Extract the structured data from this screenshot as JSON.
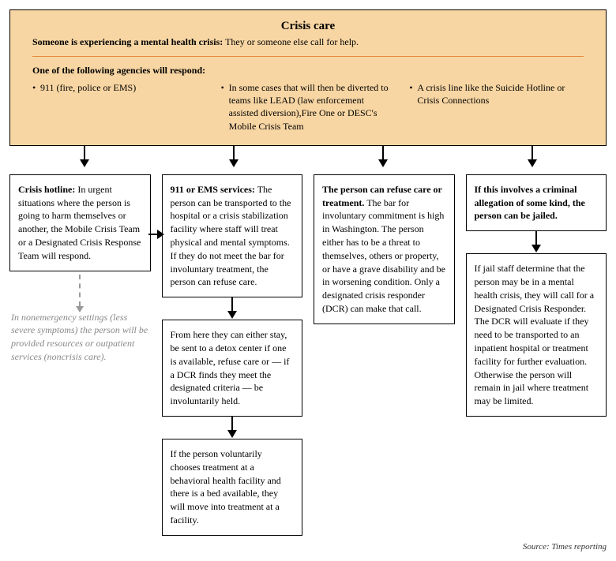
{
  "colors": {
    "header_bg": "#f8d6a3",
    "divider": "#e08a3c",
    "box_border": "#000000",
    "note_text": "#888888"
  },
  "fonts": {
    "title_size": 15,
    "body_size": 12
  },
  "header": {
    "title": "Crisis care",
    "subtitle_strong": "Someone is experiencing a mental health crisis:",
    "subtitle_rest": " They or someone else call for help.",
    "agencies_label": "One of the following agencies will respond:",
    "agencies": [
      "911 (fire, police or EMS)",
      "In some cases that will then be diverted to teams like LEAD (law enforcement assisted diversion),Fire One or DESC's Mobile Crisis Team",
      "A crisis line like the Suicide Hotline or Crisis Connections"
    ]
  },
  "columns": {
    "col1": {
      "box1_strong": "Crisis hotline:",
      "box1_rest": " In urgent situations where the person is going to harm themselves or another, the Mobile Crisis Team or a Designated Crisis Response Team will respond.",
      "note": "In nonemergency settings (less severe symptoms) the person will be provided resources or outpatient services (noncrisis care)."
    },
    "col2": {
      "box1_strong": "911 or EMS services:",
      "box1_rest": " The person can be transported to the hospital or a crisis stabilization facility where staff will treat physical and mental symptoms. If they do not meet the bar for involuntary treatment, the person can refuse care.",
      "box2": "From here they can either stay, be sent to a detox center if one is available, refuse care or — if a DCR finds they meet the designated criteria — be involuntarily held.",
      "box3": "If the person voluntarily chooses treatment at a behavioral health facility and there is a bed available, they will move into treatment at a facility."
    },
    "col3": {
      "box1_strong": "The person can refuse care or treatment.",
      "box1_rest": " The bar for involuntary commitment is high in Washington. The person either has to be a threat to themselves, others or property, or have a grave disability and be in worsening condition. Only a designated crisis responder (DCR) can make that call."
    },
    "col4": {
      "box1_strong": "If this involves a criminal allegation of some kind, the person can be jailed.",
      "box2": "If jail staff determine that the person may be in a mental health crisis, they will call for a Designated Crisis Responder. The DCR will evaluate if they need to be transported to an inpatient hospital or treatment facility for further evaluation. Otherwise the person will remain in jail where treatment may be limited."
    }
  },
  "source": "Source: Times reporting"
}
